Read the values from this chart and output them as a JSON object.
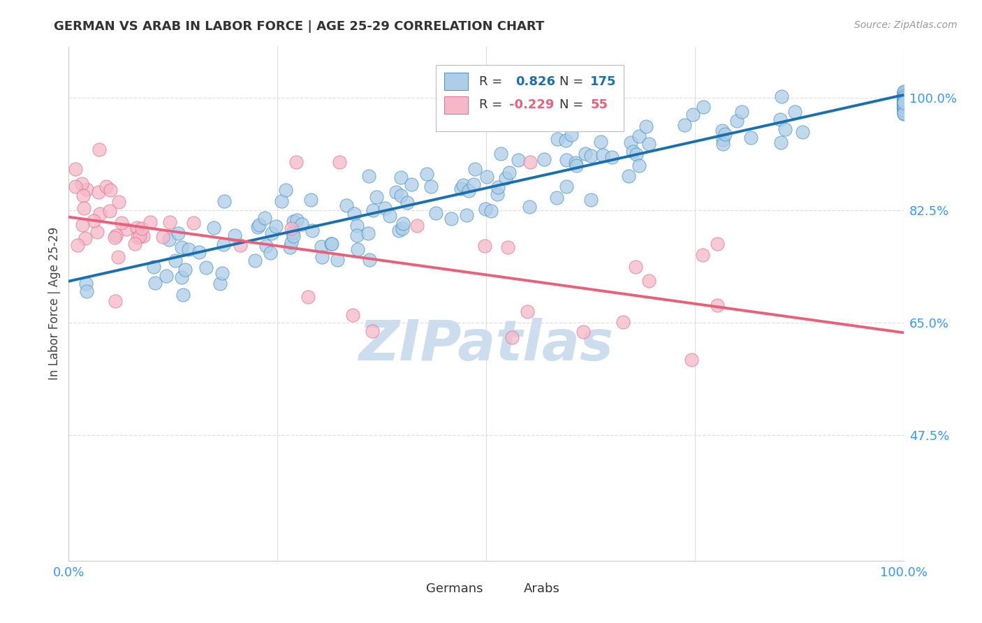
{
  "title": "GERMAN VS ARAB IN LABOR FORCE | AGE 25-29 CORRELATION CHART",
  "source": "Source: ZipAtlas.com",
  "ylabel": "In Labor Force | Age 25-29",
  "xlim": [
    0.0,
    1.0
  ],
  "ylim": [
    0.28,
    1.08
  ],
  "ytick_positions": [
    0.475,
    0.65,
    0.825,
    1.0
  ],
  "ytick_labels": [
    "47.5%",
    "65.0%",
    "82.5%",
    "100.0%"
  ],
  "xtick_positions": [
    0.0,
    0.25,
    0.5,
    0.75,
    1.0
  ],
  "xtick_labels": [
    "0.0%",
    "",
    "",
    "",
    "100.0%"
  ],
  "german_R": 0.826,
  "german_N": 175,
  "arab_R": -0.229,
  "arab_N": 55,
  "blue_fill": "#aecde8",
  "blue_edge": "#4393c3",
  "pink_fill": "#f4b8c8",
  "pink_edge": "#e07090",
  "blue_line_color": "#1a6faf",
  "pink_line_color": "#e8607a",
  "watermark_color": "#ccdded",
  "title_color": "#333333",
  "ylabel_color": "#444444",
  "tick_label_color": "#3399ff",
  "grid_color": "#e0e0e0",
  "background_color": "#ffffff",
  "legend_label_german": "Germans",
  "legend_label_arab": "Arabs",
  "blue_line_x0": 0.0,
  "blue_line_y0": 0.715,
  "blue_line_x1": 1.0,
  "blue_line_y1": 1.005,
  "pink_line_x0": 0.0,
  "pink_line_y0": 0.815,
  "pink_line_x1": 1.0,
  "pink_line_y1": 0.635
}
